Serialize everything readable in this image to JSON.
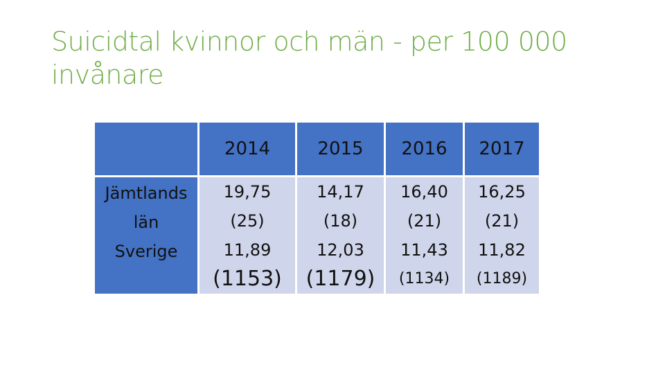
{
  "slide": {
    "title": "Suicidtal kvinnor och män - per 100 000 invånare"
  },
  "table": {
    "years": [
      "2014",
      "2015",
      "2016",
      "2017"
    ],
    "row_labels": {
      "line1": "Jämtlands",
      "line2": "län",
      "line3": "Sverige"
    },
    "cells": [
      {
        "jamtland_rate": "19,75",
        "jamtland_count": "(25)",
        "sverige_rate": "11,89",
        "sverige_count": "(1153)"
      },
      {
        "jamtland_rate": "14,17",
        "jamtland_count": "(18)",
        "sverige_rate": "12,03",
        "sverige_count": "(1179)"
      },
      {
        "jamtland_rate": "16,40",
        "jamtland_count": "(21)",
        "sverige_rate": "11,43",
        "sverige_count": "(1134)"
      },
      {
        "jamtland_rate": "16,25",
        "jamtland_count": "(21)",
        "sverige_rate": "11,82",
        "sverige_count": "(1189)"
      }
    ]
  },
  "colors": {
    "title": "#70ad47",
    "header_fill": "#4472c4",
    "body_fill": "#cfd5ea"
  }
}
